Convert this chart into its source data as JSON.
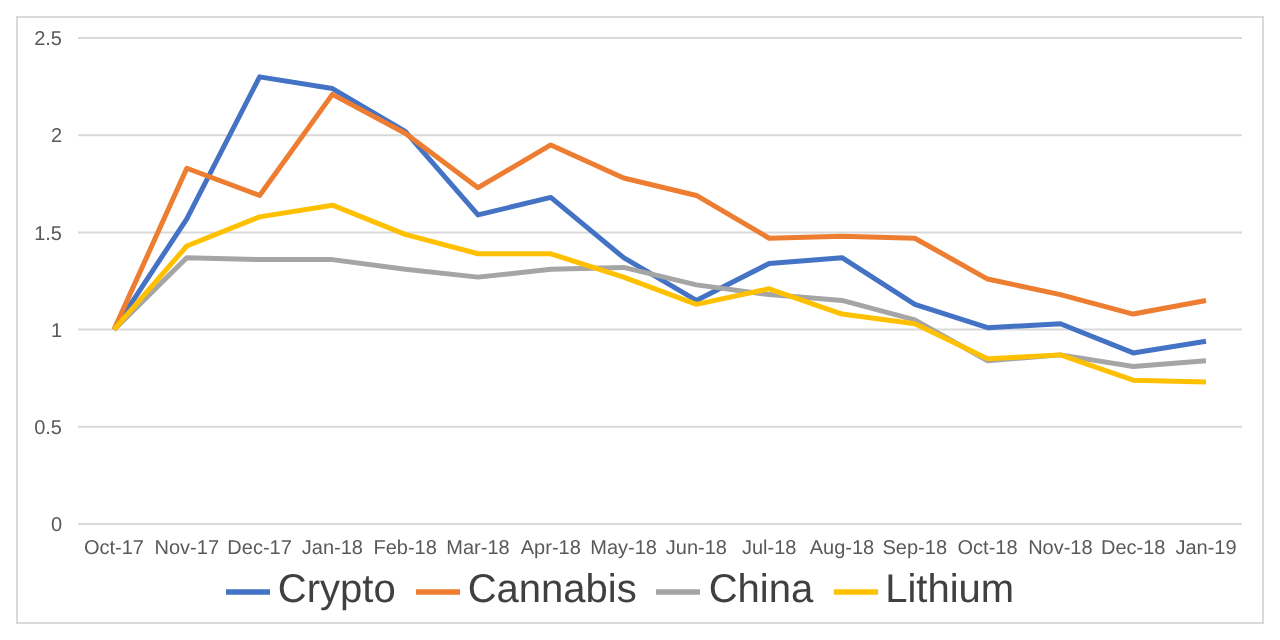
{
  "chart_data": {
    "type": "line",
    "categories": [
      "Oct-17",
      "Nov-17",
      "Dec-17",
      "Jan-18",
      "Feb-18",
      "Mar-18",
      "Apr-18",
      "May-18",
      "Jun-18",
      "Jul-18",
      "Aug-18",
      "Sep-18",
      "Oct-18",
      "Nov-18",
      "Dec-18",
      "Jan-19"
    ],
    "series": [
      {
        "name": "Crypto",
        "color": "#4472c4",
        "values": [
          1,
          1.57,
          2.3,
          2.24,
          2.02,
          1.59,
          1.68,
          1.37,
          1.15,
          1.34,
          1.37,
          1.13,
          1.01,
          1.03,
          0.88,
          0.94
        ]
      },
      {
        "name": "Cannabis",
        "color": "#ed7d31",
        "values": [
          1,
          1.83,
          1.69,
          2.21,
          2.01,
          1.73,
          1.95,
          1.78,
          1.69,
          1.47,
          1.48,
          1.47,
          1.26,
          1.18,
          1.08,
          1.15
        ]
      },
      {
        "name": "China",
        "color": "#a5a5a5",
        "values": [
          1,
          1.37,
          1.36,
          1.36,
          1.31,
          1.27,
          1.31,
          1.32,
          1.23,
          1.18,
          1.15,
          1.05,
          0.84,
          0.87,
          0.81,
          0.84
        ]
      },
      {
        "name": "Lithium",
        "color": "#ffc000",
        "values": [
          1,
          1.43,
          1.58,
          1.64,
          1.49,
          1.39,
          1.39,
          1.27,
          1.13,
          1.21,
          1.08,
          1.03,
          0.85,
          0.87,
          0.74,
          0.73
        ]
      }
    ],
    "ylim": [
      0,
      2.5
    ],
    "yticks": [
      0,
      0.5,
      1,
      1.5,
      2,
      2.5
    ],
    "grid": "y",
    "legend": "bottom",
    "marker": "none",
    "line_style": "solid"
  }
}
